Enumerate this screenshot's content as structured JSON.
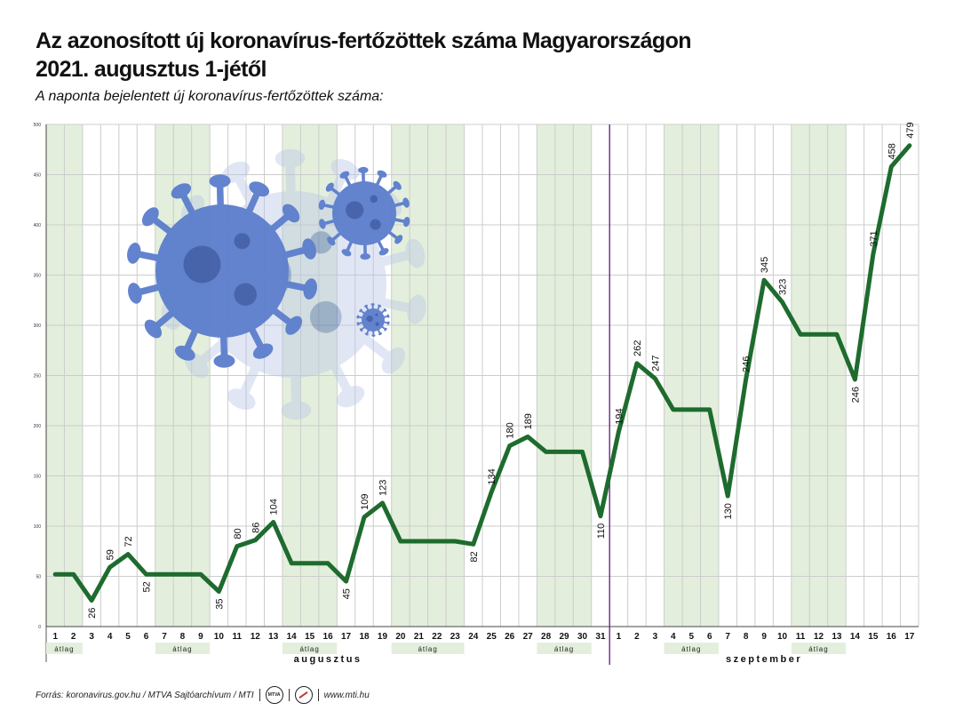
{
  "title": "Az azonosított új koronavírus-fertőzöttek száma Magyarországon",
  "title_line2": "2021. augusztus 1-jétől",
  "subtitle": "A naponta bejelentett új koronavírus-fertőzöttek száma:",
  "footer": {
    "source": "Forrás: koronavirus.gov.hu / MTVA Sajtóarchívum / MTI",
    "logo_text": "MTVA",
    "url": "www.mti.hu"
  },
  "colors": {
    "line": "#1e6b2e",
    "band": "#e3efdc",
    "grid": "#cccccc",
    "month_divider": "#6a2c86",
    "virus": "#5b7dcc"
  },
  "chart_data": {
    "type": "line",
    "ylim": [
      0,
      500
    ],
    "yticks": [
      "0",
      "50",
      "100",
      "150",
      "200",
      "250",
      "300",
      "350",
      "400",
      "450",
      "500"
    ],
    "x_labels": [
      "1",
      "2",
      "3",
      "4",
      "5",
      "6",
      "7",
      "8",
      "9",
      "10",
      "11",
      "12",
      "13",
      "14",
      "15",
      "16",
      "17",
      "18",
      "19",
      "20",
      "21",
      "22",
      "23",
      "24",
      "25",
      "26",
      "27",
      "28",
      "29",
      "30",
      "31",
      "1",
      "2",
      "3",
      "4",
      "5",
      "6",
      "7",
      "8",
      "9",
      "10",
      "11",
      "12",
      "13",
      "14",
      "15",
      "16",
      "17"
    ],
    "values": [
      52,
      52,
      26,
      59,
      72,
      52,
      52,
      52,
      52,
      35,
      80,
      86,
      104,
      63,
      63,
      63,
      45,
      109,
      123,
      85,
      85,
      85,
      85,
      82,
      134,
      180,
      189,
      174,
      174,
      174,
      110,
      194,
      262,
      247,
      216,
      216,
      216,
      130,
      246,
      345,
      323,
      291,
      291,
      291,
      246,
      371,
      458,
      479
    ],
    "data_labels": [
      "",
      "",
      "26",
      "59",
      "72",
      "52",
      "",
      "",
      "",
      "35",
      "80",
      "86",
      "104",
      "",
      "",
      "",
      "45",
      "109",
      "123",
      "",
      "",
      "",
      "",
      "82",
      "134",
      "180",
      "189",
      "",
      "",
      "",
      "110",
      "194",
      "262",
      "247",
      "",
      "",
      "",
      "130",
      "246",
      "345",
      "323",
      "",
      "",
      "",
      "246",
      "371",
      "458",
      "479"
    ],
    "average_groups": [
      {
        "start": 0,
        "end": 1,
        "label": "átlag"
      },
      {
        "start": 6,
        "end": 8,
        "label": "átlag"
      },
      {
        "start": 13,
        "end": 15,
        "label": "átlag"
      },
      {
        "start": 19,
        "end": 22,
        "label": "átlag"
      },
      {
        "start": 27,
        "end": 29,
        "label": "átlag"
      },
      {
        "start": 34,
        "end": 36,
        "label": "átlag"
      },
      {
        "start": 41,
        "end": 43,
        "label": "átlag"
      }
    ],
    "months": [
      {
        "name": "augusztus",
        "start": 0,
        "end": 30
      },
      {
        "name": "szeptember",
        "start": 31,
        "end": 47
      }
    ],
    "grid": true
  }
}
